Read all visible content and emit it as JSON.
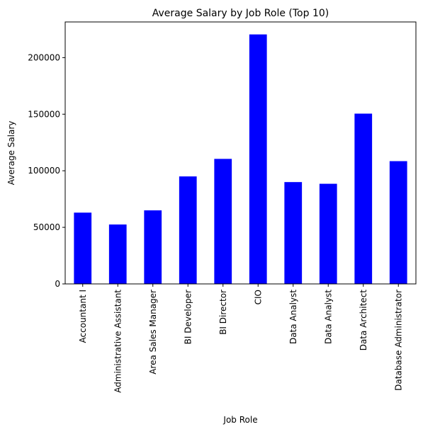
{
  "chart_data": {
    "type": "bar",
    "title": "Average Salary by Job Role (Top 10)",
    "xlabel": "Job Role",
    "ylabel": "Average Salary",
    "categories": [
      "Accountant I",
      "Administrative Assistant",
      "Area Sales Manager",
      "BI Developer",
      "BI Director",
      "CIO",
      "Data Analyst",
      "Data Analyst",
      "Data Architect",
      "Database Administrator"
    ],
    "values": [
      63000,
      52500,
      65000,
      95000,
      110500,
      220500,
      90000,
      88500,
      150500,
      108500
    ],
    "ylim": [
      0,
      231525
    ],
    "yticks": [
      0,
      50000,
      100000,
      150000,
      200000
    ],
    "ytick_labels": [
      "0",
      "50000",
      "100000",
      "150000",
      "200000"
    ],
    "bar_color": "#0000ff",
    "grid": false,
    "legend": "none"
  }
}
